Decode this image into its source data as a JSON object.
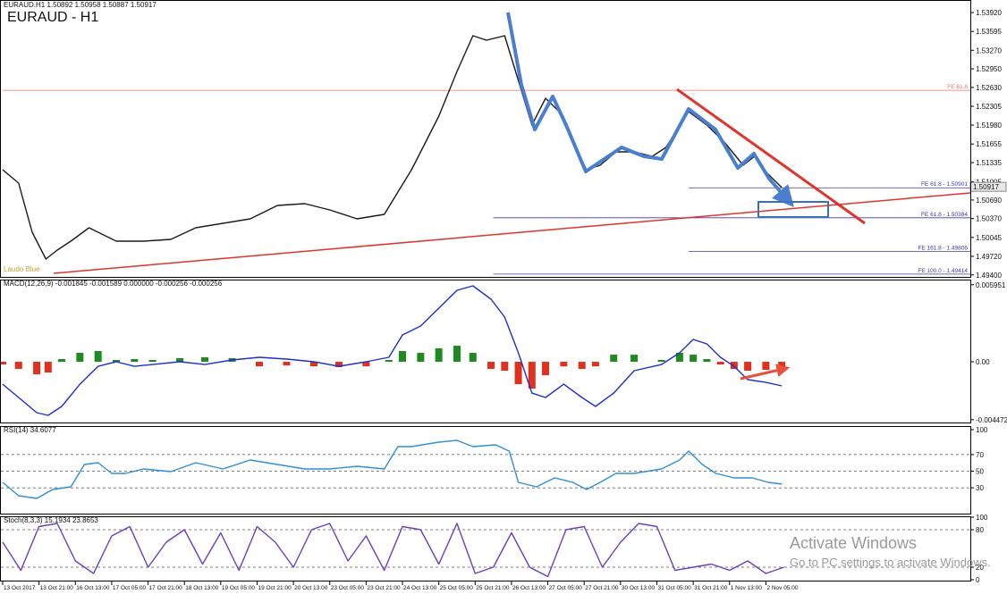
{
  "chart_data": [
    {
      "type": "line",
      "title": "EURAUD - H1",
      "subtitle": "EURAUD.H1 1.50892 1.50958 1.50887 1.50917",
      "annotation": "Laudo Blue",
      "xlim": [
        0,
        426
      ],
      "ylim": [
        1.4935,
        1.5409
      ],
      "yticks": [
        {
          "value": 1.5392,
          "label": "1.53920"
        },
        1.53595,
        {
          "value": 1.5327,
          "label": "1.53270"
        },
        {
          "value": 1.5295,
          "label": "1.52950"
        },
        {
          "value": 1.5263,
          "label": "1.52630"
        },
        1.52305,
        {
          "value": 1.5198,
          "label": "1.51980"
        },
        1.51655,
        1.51335,
        1.51005,
        {
          "value": 1.5069,
          "label": "1.50690"
        },
        {
          "value": 1.5037,
          "label": "1.50370"
        },
        1.50045,
        {
          "value": 1.4972,
          "label": "1.49720"
        },
        {
          "value": 1.494,
          "label": "1.49400"
        }
      ],
      "last": 1.50917,
      "fe_levels": [
        {
          "label": "FE 61.8",
          "value": 1.5258,
          "x0": 0,
          "color": "#e8766a"
        },
        {
          "label": "FE 61.8 - 1.50901",
          "value": 1.50901,
          "x0": 302,
          "color": "#3a3ab0"
        },
        {
          "label": "FE 61.8 - 1.50384",
          "value": 1.50384,
          "x0": 216,
          "color": "#3a3ab0"
        },
        {
          "label": "FE 161.8 - 1.49806",
          "value": 1.49806,
          "x0": 302,
          "color": "#3a3ab0"
        },
        {
          "label": "FE 100.0 - 1.49414",
          "value": 1.49414,
          "x0": 216,
          "color": "#3a3ab0"
        }
      ],
      "series": [
        {
          "color": "#1a1a1a",
          "x": [
            0,
            7,
            13,
            19,
            24,
            30,
            38,
            50,
            62,
            74,
            85,
            97,
            109,
            121,
            133,
            144,
            156,
            168,
            174,
            180,
            192,
            200,
            207,
            213,
            221,
            227,
            233,
            239,
            245,
            251,
            257,
            263,
            270,
            278,
            286,
            292,
            302,
            310,
            318,
            326,
            331,
            337,
            343
          ],
          "values": [
            1.51212,
            1.50981,
            1.50135,
            1.49673,
            1.49827,
            1.49981,
            1.50212,
            1.49981,
            1.49981,
            1.50012,
            1.50212,
            1.50289,
            1.50366,
            1.50596,
            1.50627,
            1.5052,
            1.50366,
            1.50443,
            1.50827,
            1.51212,
            1.52135,
            1.52905,
            1.53521,
            1.53444,
            1.53521,
            1.52751,
            1.51982,
            1.52443,
            1.52212,
            1.51674,
            1.51212,
            1.51289,
            1.5152,
            1.5152,
            1.51443,
            1.51597,
            1.52212,
            1.51982,
            1.51674,
            1.51289,
            1.51443,
            1.51135,
            1.50904
          ]
        }
      ]
    },
    {
      "type": "line",
      "subtitle": "MACD(12,26,9) -0.001845 -0.001589 0.000000 -0.000256 -0.000256",
      "xlim": [
        0,
        426
      ],
      "ylim": [
        -0.00462,
        0.00635
      ],
      "yticks": [
        0.005951,
        {
          "value": 0,
          "label": "0.00"
        },
        -0.004472
      ],
      "series": [
        {
          "type": "bar",
          "colors": {
            "positive": "#1f8a1f",
            "negative": "#e0301e"
          },
          "x": [
            0,
            7,
            15,
            20,
            26,
            34,
            42,
            50,
            58,
            66,
            78,
            89,
            101,
            113,
            125,
            137,
            148,
            160,
            170,
            176,
            184,
            192,
            200,
            207,
            215,
            221,
            227,
            233,
            239,
            247,
            255,
            261,
            269,
            278,
            290,
            298,
            304,
            310,
            316,
            322,
            328,
            336,
            343
          ],
          "values": [
            -0.00021,
            -0.00055,
            -0.00097,
            -0.00083,
            0.00021,
            0.00069,
            0.00083,
            0.00014,
            0.00021,
            0.00014,
            0.00028,
            0.00035,
            0.00028,
            -0.00035,
            -0.00028,
            -0.00035,
            -0.00041,
            -0.00035,
            0.00014,
            0.00083,
            0.00069,
            0.00104,
            0.00124,
            0.00069,
            -0.00055,
            -0.00069,
            -0.00173,
            -0.00207,
            -0.00104,
            -0.00035,
            -0.00055,
            -0.00035,
            0.00055,
            0.00055,
            0.00014,
            0.00069,
            0.00055,
            0.00021,
            -0.00021,
            -0.00055,
            -0.00069,
            -0.00062,
            -0.00048
          ]
        },
        {
          "color": "#1c2fd0",
          "x": [
            0,
            7,
            15,
            20,
            26,
            34,
            42,
            50,
            58,
            66,
            78,
            89,
            101,
            113,
            125,
            137,
            148,
            160,
            170,
            176,
            184,
            192,
            200,
            207,
            215,
            221,
            227,
            233,
            239,
            247,
            255,
            261,
            269,
            278,
            290,
            298,
            304,
            310,
            316,
            322,
            328,
            336,
            343
          ],
          "values": [
            -0.00173,
            -0.00276,
            -0.00393,
            -0.00414,
            -0.00345,
            -0.00173,
            -0.00035,
            0,
            -0.00035,
            -0.00021,
            0,
            -0.00021,
            0.00014,
            0.00035,
            0.00021,
            0,
            -0.00035,
            0,
            0.00035,
            0.00207,
            0.00276,
            0.00414,
            0.00552,
            0.00587,
            0.00483,
            0.00345,
            0.00069,
            -0.00242,
            -0.00276,
            -0.00173,
            -0.00276,
            -0.00345,
            -0.00242,
            -0.00069,
            -0.00021,
            0.00069,
            0.00173,
            0.00138,
            0.00035,
            -0.00035,
            -0.00138,
            -0.00159,
            -0.00186
          ]
        }
      ]
    },
    {
      "type": "line",
      "subtitle": "RSI(14) 34.6077",
      "xlim": [
        0,
        426
      ],
      "ylim": [
        0,
        100
      ],
      "yticks": [
        100,
        70,
        50,
        30
      ],
      "levels": [
        70,
        50,
        30
      ],
      "series": [
        {
          "color": "#2f8fd8",
          "x": [
            0,
            7,
            15,
            22,
            30,
            36,
            42,
            48,
            54,
            62,
            74,
            85,
            97,
            109,
            121,
            133,
            144,
            156,
            168,
            174,
            180,
            192,
            200,
            207,
            217,
            223,
            227,
            235,
            243,
            251,
            257,
            263,
            270,
            278,
            290,
            298,
            302,
            308,
            314,
            322,
            330,
            337,
            343
          ],
          "values": [
            36.6,
            20.4,
            17.2,
            28.0,
            31.2,
            58.1,
            60.2,
            47.3,
            47.3,
            52.7,
            49.5,
            60.2,
            52.7,
            63.4,
            58.1,
            52.7,
            52.7,
            55.9,
            52.7,
            79.6,
            79.6,
            84.9,
            87.1,
            79.6,
            81.7,
            74.2,
            36.6,
            31.2,
            41.9,
            36.6,
            28.0,
            36.6,
            47.3,
            47.3,
            52.7,
            63.4,
            74.2,
            58.1,
            47.3,
            41.9,
            41.9,
            36.6,
            34.4
          ]
        }
      ]
    },
    {
      "type": "line",
      "subtitle": "Stoch(8,3,3) 15.1934 23.8653",
      "xlim": [
        0,
        426
      ],
      "ylim": [
        0,
        100
      ],
      "yticks": [
        100,
        80,
        20,
        0
      ],
      "levels": [
        80,
        20
      ],
      "xticks": [
        {
          "value": 0,
          "label": "13 Oct 2017"
        },
        {
          "value": 16,
          "label": "13 Oct 21:00"
        },
        {
          "value": 32,
          "label": "16 Oct 13:00"
        },
        {
          "value": 48,
          "label": "17 Oct 05:00"
        },
        {
          "value": 64,
          "label": "17 Oct 21:00"
        },
        {
          "value": 80,
          "label": "18 Oct 13:00"
        },
        {
          "value": 96,
          "label": "19 Oct 05:00"
        },
        {
          "value": 112,
          "label": "19 Oct 21:00"
        },
        {
          "value": 128,
          "label": "20 Oct 13:00"
        },
        {
          "value": 144,
          "label": "23 Oct 05:00"
        },
        {
          "value": 160,
          "label": "23 Oct 21:00"
        },
        {
          "value": 176,
          "label": "24 Oct 13:00"
        },
        {
          "value": 192,
          "label": "25 Oct 05:00"
        },
        {
          "value": 208,
          "label": "25 Oct 21:00"
        },
        {
          "value": 224,
          "label": "26 Oct 13:00"
        },
        {
          "value": 240,
          "label": "27 Oct 05:00"
        },
        {
          "value": 256,
          "label": "27 Oct 21:00"
        },
        {
          "value": 272,
          "label": "30 Oct 13:00"
        },
        {
          "value": 288,
          "label": "31 Oct 05:00"
        },
        {
          "value": 304,
          "label": "31 Oct 21:00"
        },
        {
          "value": 320,
          "label": "1 Nov 13:00"
        },
        {
          "value": 336,
          "label": "2 Nov 05:00"
        }
      ],
      "series": [
        {
          "color": "#6a3fc0",
          "x": [
            0,
            8,
            16,
            24,
            32,
            40,
            48,
            56,
            64,
            72,
            80,
            88,
            96,
            104,
            112,
            120,
            128,
            136,
            144,
            152,
            160,
            168,
            176,
            184,
            192,
            200,
            208,
            216,
            224,
            232,
            240,
            248,
            256,
            264,
            272,
            280,
            288,
            296,
            304,
            312,
            320,
            328,
            336,
            344
          ],
          "values": [
            60,
            15,
            85,
            90,
            30,
            10,
            70,
            85,
            20,
            60,
            80,
            25,
            75,
            15,
            85,
            60,
            20,
            80,
            90,
            30,
            70,
            15,
            85,
            80,
            25,
            90,
            10,
            20,
            75,
            20,
            5,
            80,
            85,
            20,
            60,
            90,
            85,
            15,
            20,
            25,
            15,
            30,
            10,
            20
          ]
        }
      ]
    }
  ],
  "watermark": {
    "title": "Activate Windows",
    "subtitle": "Go to PC settings to activate Windows."
  }
}
